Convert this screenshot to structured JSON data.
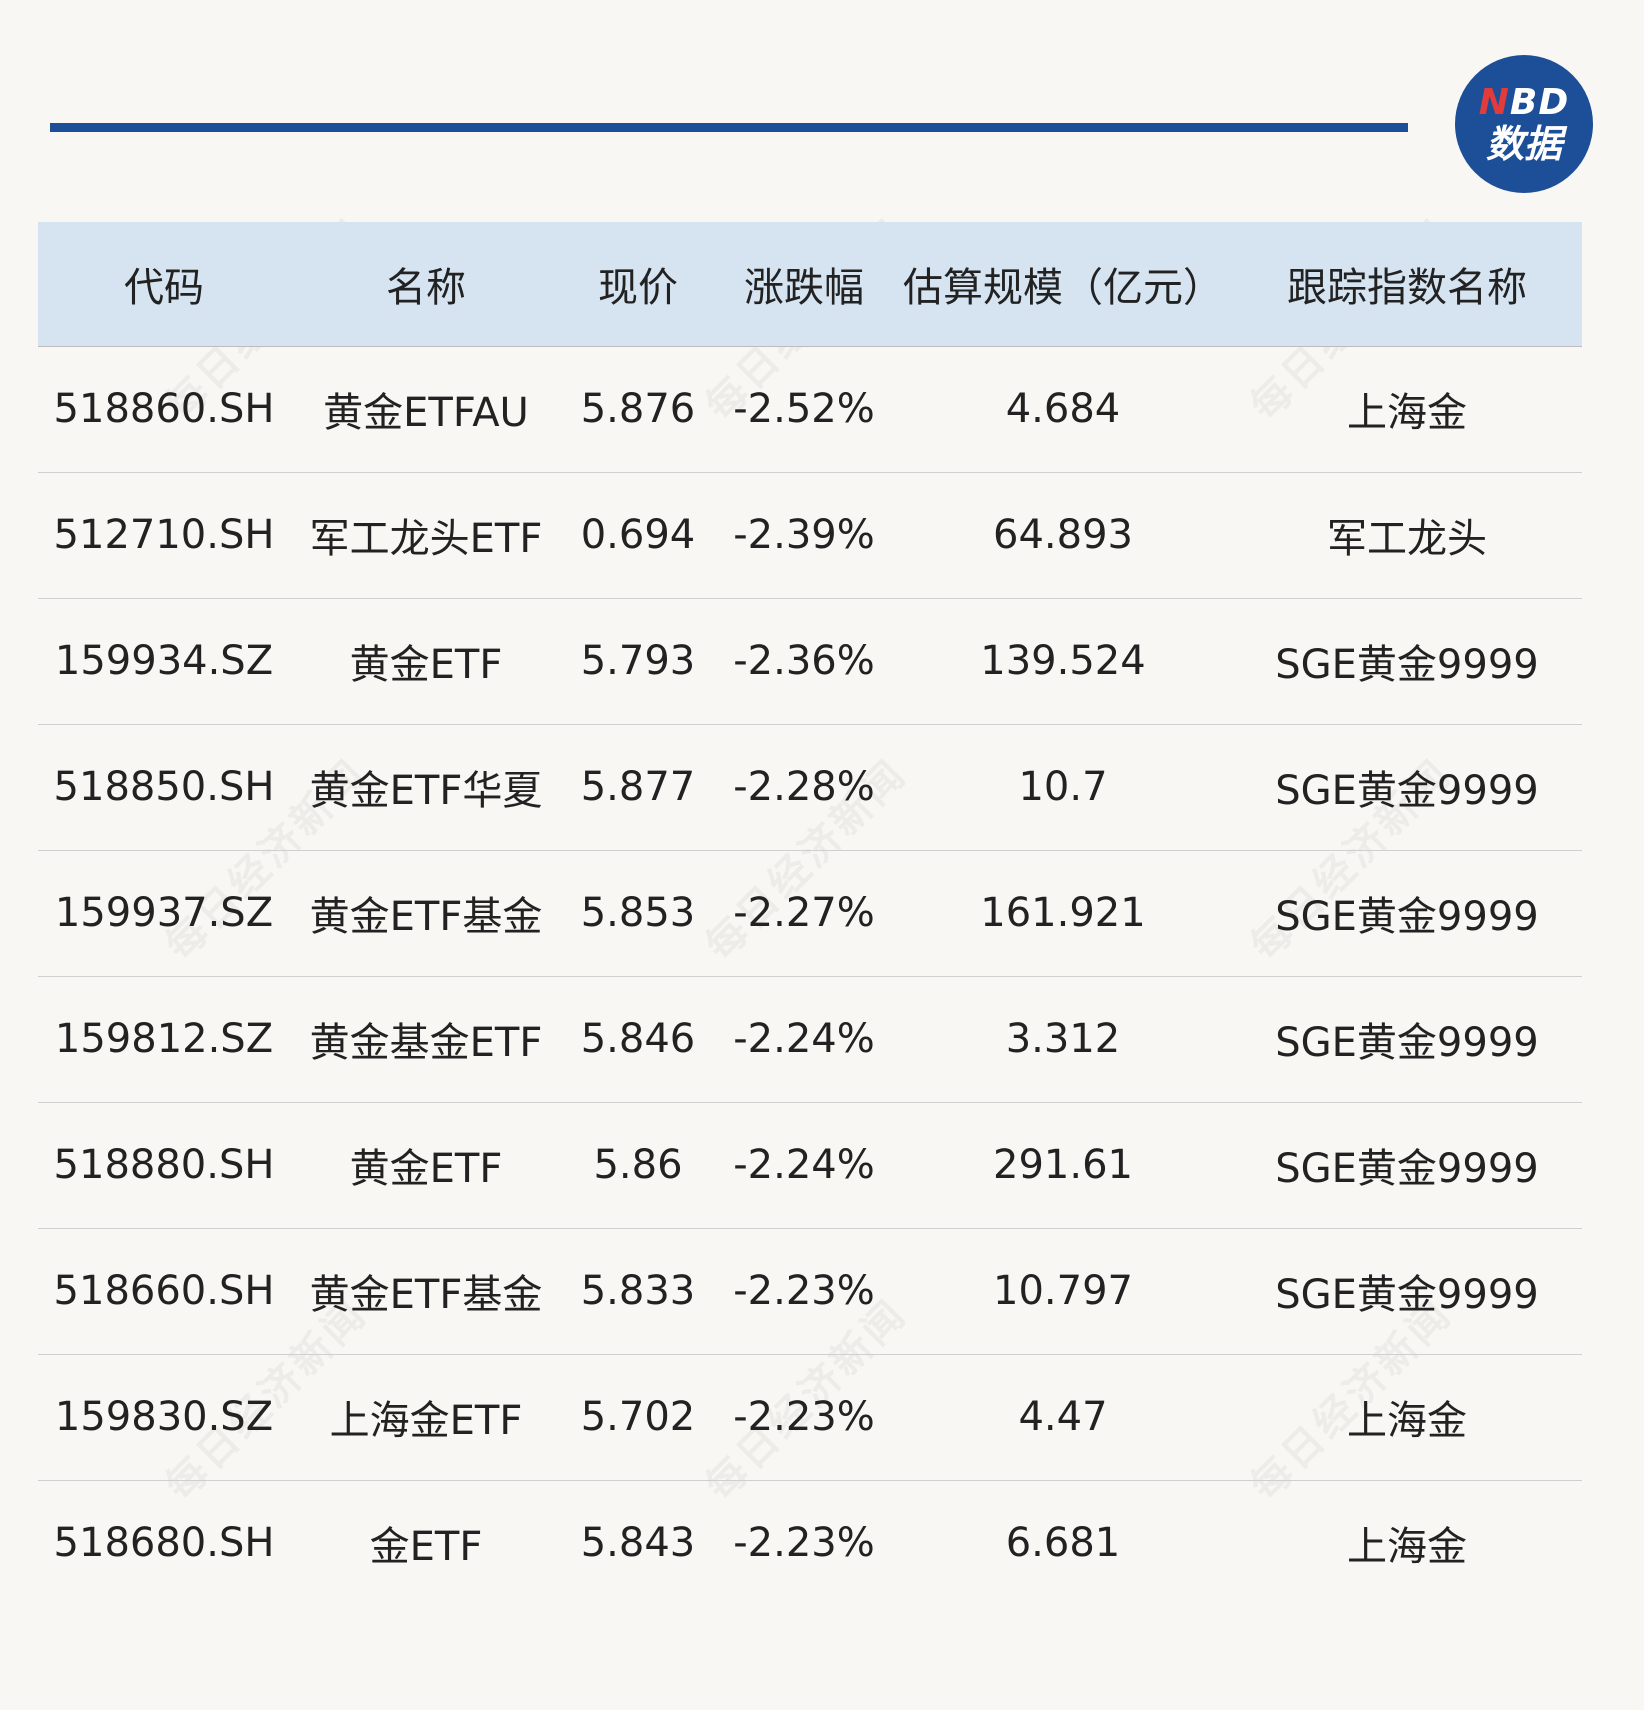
{
  "logo": {
    "n_letter": "N",
    "bd_letters": "BD",
    "subtitle": "数据",
    "brand_color": "#1c4f98",
    "accent_color": "#e23b3b"
  },
  "watermark_text": "每日经济新闻",
  "chart_data": {
    "type": "table",
    "columns": [
      "代码",
      "名称",
      "现价",
      "涨跌幅",
      "估算规模（亿元）",
      "跟踪指数名称"
    ],
    "rows": [
      [
        "518860.SH",
        "黄金ETFAU",
        "5.876",
        "-2.52%",
        "4.684",
        "上海金"
      ],
      [
        "512710.SH",
        "军工龙头ETF",
        "0.694",
        "-2.39%",
        "64.893",
        "军工龙头"
      ],
      [
        "159934.SZ",
        "黄金ETF",
        "5.793",
        "-2.36%",
        "139.524",
        "SGE黄金9999"
      ],
      [
        "518850.SH",
        "黄金ETF华夏",
        "5.877",
        "-2.28%",
        "10.7",
        "SGE黄金9999"
      ],
      [
        "159937.SZ",
        "黄金ETF基金",
        "5.853",
        "-2.27%",
        "161.921",
        "SGE黄金9999"
      ],
      [
        "159812.SZ",
        "黄金基金ETF",
        "5.846",
        "-2.24%",
        "3.312",
        "SGE黄金9999"
      ],
      [
        "518880.SH",
        "黄金ETF",
        "5.86",
        "-2.24%",
        "291.61",
        "SGE黄金9999"
      ],
      [
        "518660.SH",
        "黄金ETF基金",
        "5.833",
        "-2.23%",
        "10.797",
        "SGE黄金9999"
      ],
      [
        "159830.SZ",
        "上海金ETF",
        "5.702",
        "-2.23%",
        "4.47",
        "上海金"
      ],
      [
        "518680.SH",
        "金ETF",
        "5.843",
        "-2.23%",
        "6.681",
        "上海金"
      ]
    ]
  }
}
